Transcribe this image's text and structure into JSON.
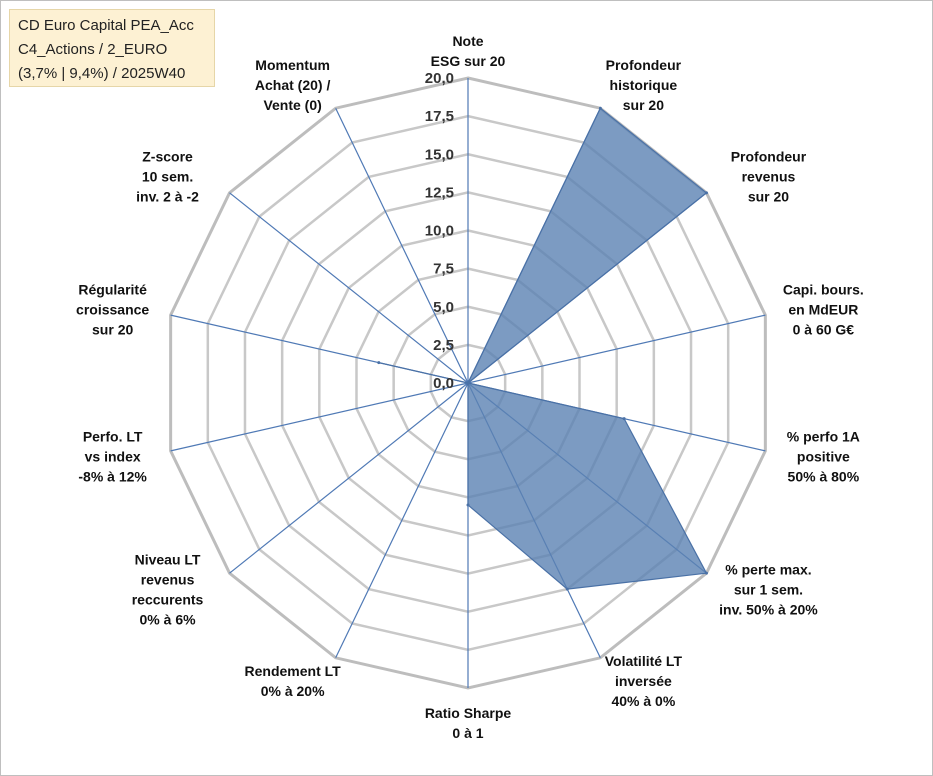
{
  "infobox": {
    "line1": "CD Euro Capital PEA_Acc",
    "line2": "C4_Actions / 2_EURO",
    "line3": "(3,7% | 9,4%) / 2025W40"
  },
  "chart_data": {
    "type": "radar",
    "title": "",
    "rmin": 0,
    "rmax": 20,
    "tick_values": [
      0,
      2.5,
      5,
      7.5,
      10,
      12.5,
      15,
      17.5,
      20
    ],
    "tick_labels": [
      "0,0",
      "2,5",
      "5,0",
      "7,5",
      "10,0",
      "12,5",
      "15,0",
      "17,5",
      "20,0"
    ],
    "axes": [
      {
        "name": "note-esg",
        "label": [
          "Note",
          "ESG sur 20"
        ],
        "value": 0
      },
      {
        "name": "profondeur-historique",
        "label": [
          "Profondeur",
          "historique",
          "sur 20"
        ],
        "value": 20
      },
      {
        "name": "profondeur-revenus",
        "label": [
          "Profondeur",
          "revenus",
          "sur 20"
        ],
        "value": 20
      },
      {
        "name": "capi-bours",
        "label": [
          "Capi. bours.",
          "en MdEUR",
          "0 à 60 G€"
        ],
        "value": 0
      },
      {
        "name": "perfo-1a-positive",
        "label": [
          "% perfo 1A",
          "positive",
          "50% à 80%"
        ],
        "value": 10.5
      },
      {
        "name": "perte-max",
        "label": [
          "% perte max.",
          "sur 1 sem.",
          "inv. 50% à 20%"
        ],
        "value": 20
      },
      {
        "name": "volatilite-lt",
        "label": [
          "Volatilité LT",
          "inversée",
          "40% à 0%"
        ],
        "value": 15
      },
      {
        "name": "ratio-sharpe",
        "label": [
          "Ratio Sharpe",
          "0 à 1"
        ],
        "value": 8
      },
      {
        "name": "rendement-lt",
        "label": [
          "Rendement LT",
          "0% à 20%"
        ],
        "value": 0
      },
      {
        "name": "niveau-lt-revenus",
        "label": [
          "Niveau LT",
          "revenus",
          "reccurents",
          "0% à 6%"
        ],
        "value": 0
      },
      {
        "name": "perfo-lt-vs-index",
        "label": [
          "Perfo. LT",
          "vs index",
          "-8% à 12%"
        ],
        "value": 0
      },
      {
        "name": "regularite-croissance",
        "label": [
          "Régularité",
          "croissance",
          "sur 20"
        ],
        "value": 6
      },
      {
        "name": "z-score",
        "label": [
          "Z-score",
          "10 sem.",
          "inv. 2 à -2"
        ],
        "value": 0
      },
      {
        "name": "momentum",
        "label": [
          "Momentum",
          "Achat (20) /",
          "Vente (0)"
        ],
        "value": 0
      }
    ],
    "series": [
      {
        "name": "CD Euro Capital PEA_Acc",
        "color": "#5b82b3"
      }
    ]
  }
}
